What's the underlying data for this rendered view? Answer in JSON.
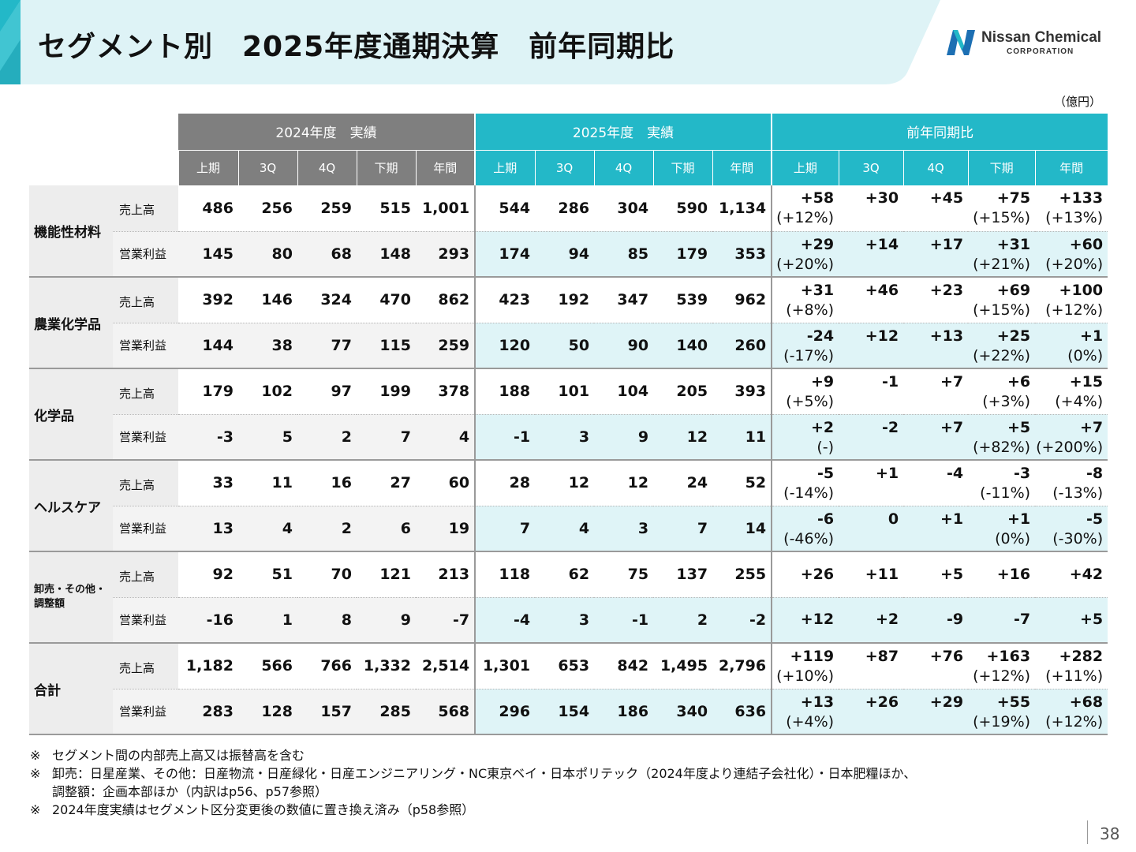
{
  "header": {
    "title": "セグメント別　2025年度通期決算　前年同期比",
    "logo": {
      "name": "Nissan Chemical",
      "sub": "CORPORATION",
      "icon": "nissan-chemical-logo-icon"
    },
    "band_color": "#dff4f7",
    "accent_color": "#23b8c8"
  },
  "unit": "（億円）",
  "table": {
    "groups": [
      "2024年度　実績",
      "2025年度　実績",
      "前年同期比"
    ],
    "periods": [
      "上期",
      "3Q",
      "4Q",
      "下期",
      "年間"
    ],
    "segments": [
      {
        "name": "機能性材料",
        "rows": [
          {
            "metric": "売上高",
            "v2024": [
              "486",
              "256",
              "259",
              "515",
              "1,001"
            ],
            "v2025": [
              "544",
              "286",
              "304",
              "590",
              "1,134"
            ],
            "yoy": [
              {
                "a": "+58",
                "p": "(+12%)"
              },
              {
                "a": "+30",
                "p": ""
              },
              {
                "a": "+45",
                "p": ""
              },
              {
                "a": "+75",
                "p": "(+15%)"
              },
              {
                "a": "+133",
                "p": "(+13%)"
              }
            ]
          },
          {
            "metric": "営業利益",
            "v2024": [
              "145",
              "80",
              "68",
              "148",
              "293"
            ],
            "v2025": [
              "174",
              "94",
              "85",
              "179",
              "353"
            ],
            "yoy": [
              {
                "a": "+29",
                "p": "(+20%)"
              },
              {
                "a": "+14",
                "p": ""
              },
              {
                "a": "+17",
                "p": ""
              },
              {
                "a": "+31",
                "p": "(+21%)"
              },
              {
                "a": "+60",
                "p": "(+20%)"
              }
            ]
          }
        ]
      },
      {
        "name": "農業化学品",
        "rows": [
          {
            "metric": "売上高",
            "v2024": [
              "392",
              "146",
              "324",
              "470",
              "862"
            ],
            "v2025": [
              "423",
              "192",
              "347",
              "539",
              "962"
            ],
            "yoy": [
              {
                "a": "+31",
                "p": "(+8%)"
              },
              {
                "a": "+46",
                "p": ""
              },
              {
                "a": "+23",
                "p": ""
              },
              {
                "a": "+69",
                "p": "(+15%)"
              },
              {
                "a": "+100",
                "p": "(+12%)"
              }
            ]
          },
          {
            "metric": "営業利益",
            "v2024": [
              "144",
              "38",
              "77",
              "115",
              "259"
            ],
            "v2025": [
              "120",
              "50",
              "90",
              "140",
              "260"
            ],
            "yoy": [
              {
                "a": "-24",
                "p": "(-17%)"
              },
              {
                "a": "+12",
                "p": ""
              },
              {
                "a": "+13",
                "p": ""
              },
              {
                "a": "+25",
                "p": "(+22%)"
              },
              {
                "a": "+1",
                "p": "(0%)"
              }
            ]
          }
        ]
      },
      {
        "name": "化学品",
        "rows": [
          {
            "metric": "売上高",
            "v2024": [
              "179",
              "102",
              "97",
              "199",
              "378"
            ],
            "v2025": [
              "188",
              "101",
              "104",
              "205",
              "393"
            ],
            "yoy": [
              {
                "a": "+9",
                "p": "(+5%)"
              },
              {
                "a": "-1",
                "p": ""
              },
              {
                "a": "+7",
                "p": ""
              },
              {
                "a": "+6",
                "p": "(+3%)"
              },
              {
                "a": "+15",
                "p": "(+4%)"
              }
            ]
          },
          {
            "metric": "営業利益",
            "v2024": [
              "-3",
              "5",
              "2",
              "7",
              "4"
            ],
            "v2025": [
              "-1",
              "3",
              "9",
              "12",
              "11"
            ],
            "yoy": [
              {
                "a": "+2",
                "p": "(-)"
              },
              {
                "a": "-2",
                "p": ""
              },
              {
                "a": "+7",
                "p": ""
              },
              {
                "a": "+5",
                "p": "(+82%)"
              },
              {
                "a": "+7",
                "p": "(+200%)"
              }
            ]
          }
        ]
      },
      {
        "name": "ヘルスケア",
        "rows": [
          {
            "metric": "売上高",
            "v2024": [
              "33",
              "11",
              "16",
              "27",
              "60"
            ],
            "v2025": [
              "28",
              "12",
              "12",
              "24",
              "52"
            ],
            "yoy": [
              {
                "a": "-5",
                "p": "(-14%)"
              },
              {
                "a": "+1",
                "p": ""
              },
              {
                "a": "-4",
                "p": ""
              },
              {
                "a": "-3",
                "p": "(-11%)"
              },
              {
                "a": "-8",
                "p": "(-13%)"
              }
            ]
          },
          {
            "metric": "営業利益",
            "v2024": [
              "13",
              "4",
              "2",
              "6",
              "19"
            ],
            "v2025": [
              "7",
              "4",
              "3",
              "7",
              "14"
            ],
            "yoy": [
              {
                "a": "-6",
                "p": "(-46%)"
              },
              {
                "a": "0",
                "p": ""
              },
              {
                "a": "+1",
                "p": ""
              },
              {
                "a": "+1",
                "p": "(0%)"
              },
              {
                "a": "-5",
                "p": "(-30%)"
              }
            ]
          }
        ]
      },
      {
        "name": "卸売・その他・調整額",
        "small": true,
        "rows": [
          {
            "metric": "売上高",
            "v2024": [
              "92",
              "51",
              "70",
              "121",
              "213"
            ],
            "v2025": [
              "118",
              "62",
              "75",
              "137",
              "255"
            ],
            "yoy": [
              {
                "a": "+26",
                "p": ""
              },
              {
                "a": "+11",
                "p": ""
              },
              {
                "a": "+5",
                "p": ""
              },
              {
                "a": "+16",
                "p": ""
              },
              {
                "a": "+42",
                "p": ""
              }
            ]
          },
          {
            "metric": "営業利益",
            "v2024": [
              "-16",
              "1",
              "8",
              "9",
              "-7"
            ],
            "v2025": [
              "-4",
              "3",
              "-1",
              "2",
              "-2"
            ],
            "yoy": [
              {
                "a": "+12",
                "p": ""
              },
              {
                "a": "+2",
                "p": ""
              },
              {
                "a": "-9",
                "p": ""
              },
              {
                "a": "-7",
                "p": ""
              },
              {
                "a": "+5",
                "p": ""
              }
            ]
          }
        ]
      },
      {
        "name": "合計",
        "rows": [
          {
            "metric": "売上高",
            "v2024": [
              "1,182",
              "566",
              "766",
              "1,332",
              "2,514"
            ],
            "v2025": [
              "1,301",
              "653",
              "842",
              "1,495",
              "2,796"
            ],
            "yoy": [
              {
                "a": "+119",
                "p": "(+10%)"
              },
              {
                "a": "+87",
                "p": ""
              },
              {
                "a": "+76",
                "p": ""
              },
              {
                "a": "+163",
                "p": "(+12%)"
              },
              {
                "a": "+282",
                "p": "(+11%)"
              }
            ]
          },
          {
            "metric": "営業利益",
            "v2024": [
              "283",
              "128",
              "157",
              "285",
              "568"
            ],
            "v2025": [
              "296",
              "154",
              "186",
              "340",
              "636"
            ],
            "yoy": [
              {
                "a": "+13",
                "p": "(+4%)"
              },
              {
                "a": "+26",
                "p": ""
              },
              {
                "a": "+29",
                "p": ""
              },
              {
                "a": "+55",
                "p": "(+19%)"
              },
              {
                "a": "+68",
                "p": "(+12%)"
              }
            ]
          }
        ]
      }
    ]
  },
  "notes": [
    {
      "mark": "※",
      "text": "セグメント間の内部売上高又は振替高を含む"
    },
    {
      "mark": "※",
      "text": "卸売：日星産業、その他：日産物流・日産緑化・日産エンジニアリング・NC東京ベイ・日本ポリテック（2024年度より連結子会社化）・日本肥糧ほか、"
    },
    {
      "mark": "",
      "text": "調整額：企画本部ほか（内訳はp56、p57参照）"
    },
    {
      "mark": "※",
      "text": "2024年度実績はセグメント区分変更後の数値に置き換え済み（p58参照）"
    }
  ],
  "page_number": "38"
}
